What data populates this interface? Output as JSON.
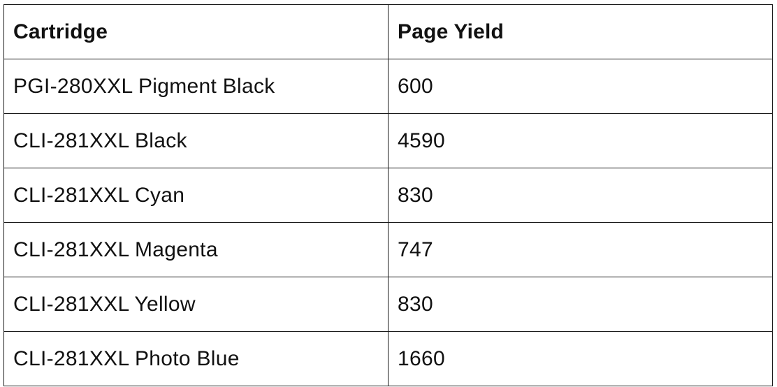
{
  "table": {
    "headers": [
      "Cartridge",
      "Page Yield"
    ],
    "rows": [
      [
        "PGI-280XXL Pigment Black",
        "600"
      ],
      [
        "CLI-281XXL Black",
        "4590"
      ],
      [
        "CLI-281XXL Cyan",
        "830"
      ],
      [
        "CLI-281XXL Magenta",
        "747"
      ],
      [
        "CLI-281XXL Yellow",
        "830"
      ],
      [
        "CLI-281XXL Photo Blue",
        "1660"
      ]
    ]
  },
  "colors": {
    "border": "#1a1a1a",
    "text": "#111111",
    "background": "#ffffff"
  }
}
